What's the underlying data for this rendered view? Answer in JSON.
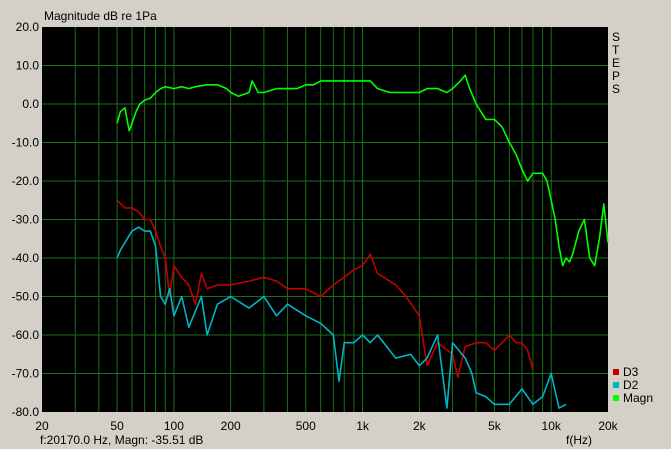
{
  "chart_data": {
    "type": "line",
    "title": "Magnitude dB re 1Pa",
    "xlabel": "f(Hz)",
    "ylabel": "",
    "xscale": "log",
    "xlim": [
      20,
      20000
    ],
    "ylim": [
      -80,
      20
    ],
    "grid": true,
    "legend_placement": "bottom-right",
    "background": "#000000",
    "grid_color": "#1a6e1a",
    "side_label": [
      "S",
      "T",
      "E",
      "P",
      "S"
    ],
    "x_ticks": [
      20,
      50,
      100,
      200,
      500,
      1000,
      2000,
      5000,
      10000,
      20000
    ],
    "x_tick_labels": [
      "20",
      "50",
      "100",
      "200",
      "500",
      "1k",
      "2k",
      "5k",
      "10k",
      "20k"
    ],
    "x_minor_grid": [
      30,
      40,
      60,
      70,
      80,
      90,
      300,
      400,
      600,
      700,
      800,
      900,
      3000,
      4000,
      6000,
      7000,
      8000,
      9000
    ],
    "y_ticks": [
      20,
      10,
      0,
      -10,
      -20,
      -30,
      -40,
      -50,
      -60,
      -70,
      -80
    ],
    "y_tick_labels": [
      "20.0",
      "10.0",
      "0.0",
      "-10.0",
      "-20.0",
      "-30.0",
      "-40.0",
      "-50.0",
      "-60.0",
      "-70.0",
      "-80.0"
    ],
    "status": "f:20170.0 Hz, Magn: -35.51 dB",
    "series": [
      {
        "name": "D3",
        "color": "#c00000",
        "points": [
          [
            50,
            -25
          ],
          [
            55,
            -27
          ],
          [
            60,
            -27
          ],
          [
            65,
            -28
          ],
          [
            70,
            -30
          ],
          [
            75,
            -30
          ],
          [
            80,
            -33
          ],
          [
            85,
            -37
          ],
          [
            90,
            -40
          ],
          [
            95,
            -50
          ],
          [
            100,
            -42
          ],
          [
            110,
            -45
          ],
          [
            120,
            -47
          ],
          [
            130,
            -52
          ],
          [
            140,
            -44
          ],
          [
            150,
            -48
          ],
          [
            170,
            -47
          ],
          [
            200,
            -47
          ],
          [
            250,
            -46
          ],
          [
            300,
            -45
          ],
          [
            350,
            -46
          ],
          [
            400,
            -48
          ],
          [
            500,
            -48
          ],
          [
            600,
            -50
          ],
          [
            700,
            -47
          ],
          [
            800,
            -45
          ],
          [
            900,
            -43
          ],
          [
            1000,
            -42
          ],
          [
            1100,
            -39
          ],
          [
            1200,
            -44
          ],
          [
            1500,
            -47
          ],
          [
            1700,
            -50
          ],
          [
            2000,
            -55
          ],
          [
            2200,
            -68
          ],
          [
            2500,
            -62
          ],
          [
            3000,
            -65
          ],
          [
            3200,
            -71
          ],
          [
            3500,
            -63
          ],
          [
            4000,
            -62
          ],
          [
            4500,
            -62
          ],
          [
            5000,
            -64
          ],
          [
            5500,
            -62
          ],
          [
            6000,
            -60
          ],
          [
            6500,
            -62
          ],
          [
            7000,
            -62
          ],
          [
            7500,
            -64
          ],
          [
            8000,
            -69
          ]
        ]
      },
      {
        "name": "D2",
        "color": "#00b4c8",
        "points": [
          [
            50,
            -40
          ],
          [
            52,
            -38
          ],
          [
            55,
            -36
          ],
          [
            60,
            -33
          ],
          [
            65,
            -32
          ],
          [
            70,
            -33
          ],
          [
            75,
            -33
          ],
          [
            80,
            -37
          ],
          [
            85,
            -50
          ],
          [
            90,
            -52
          ],
          [
            95,
            -48
          ],
          [
            100,
            -55
          ],
          [
            110,
            -50
          ],
          [
            120,
            -58
          ],
          [
            140,
            -50
          ],
          [
            150,
            -60
          ],
          [
            170,
            -52
          ],
          [
            200,
            -50
          ],
          [
            250,
            -53
          ],
          [
            300,
            -50
          ],
          [
            350,
            -55
          ],
          [
            400,
            -52
          ],
          [
            500,
            -55
          ],
          [
            600,
            -57
          ],
          [
            700,
            -60
          ],
          [
            750,
            -72
          ],
          [
            800,
            -62
          ],
          [
            900,
            -62
          ],
          [
            1000,
            -60
          ],
          [
            1100,
            -62
          ],
          [
            1200,
            -60
          ],
          [
            1500,
            -66
          ],
          [
            1800,
            -65
          ],
          [
            2000,
            -68
          ],
          [
            2200,
            -66
          ],
          [
            2500,
            -60
          ],
          [
            2800,
            -79
          ],
          [
            3000,
            -62
          ],
          [
            3500,
            -66
          ],
          [
            3800,
            -70
          ],
          [
            4000,
            -75
          ],
          [
            4500,
            -76
          ],
          [
            5000,
            -78
          ],
          [
            6000,
            -78
          ],
          [
            7000,
            -74
          ],
          [
            8000,
            -78
          ],
          [
            9000,
            -76
          ],
          [
            10000,
            -70
          ],
          [
            11000,
            -79
          ],
          [
            12000,
            -78
          ]
        ]
      },
      {
        "name": "Magn",
        "color": "#00ff00",
        "points": [
          [
            50,
            -5
          ],
          [
            52,
            -2
          ],
          [
            55,
            -1
          ],
          [
            58,
            -7
          ],
          [
            60,
            -5
          ],
          [
            63,
            -2
          ],
          [
            66,
            0
          ],
          [
            70,
            1
          ],
          [
            75,
            1.5
          ],
          [
            80,
            3
          ],
          [
            85,
            4
          ],
          [
            90,
            4.5
          ],
          [
            100,
            4
          ],
          [
            110,
            4.5
          ],
          [
            120,
            4
          ],
          [
            130,
            4.5
          ],
          [
            150,
            5
          ],
          [
            170,
            5
          ],
          [
            190,
            4
          ],
          [
            200,
            3
          ],
          [
            220,
            2
          ],
          [
            250,
            3
          ],
          [
            260,
            6
          ],
          [
            280,
            3
          ],
          [
            300,
            3
          ],
          [
            350,
            4
          ],
          [
            400,
            4
          ],
          [
            450,
            4
          ],
          [
            500,
            5
          ],
          [
            550,
            5
          ],
          [
            600,
            6
          ],
          [
            700,
            6
          ],
          [
            800,
            6
          ],
          [
            900,
            6
          ],
          [
            1000,
            6
          ],
          [
            1100,
            6
          ],
          [
            1200,
            4
          ],
          [
            1400,
            3
          ],
          [
            1600,
            3
          ],
          [
            2000,
            3
          ],
          [
            2200,
            4
          ],
          [
            2500,
            4
          ],
          [
            2800,
            3
          ],
          [
            3000,
            4
          ],
          [
            3300,
            6
          ],
          [
            3500,
            7.5
          ],
          [
            3700,
            4
          ],
          [
            4000,
            0
          ],
          [
            4500,
            -4
          ],
          [
            5000,
            -4
          ],
          [
            5500,
            -6
          ],
          [
            6000,
            -10
          ],
          [
            6500,
            -13
          ],
          [
            7000,
            -17
          ],
          [
            7500,
            -20
          ],
          [
            8000,
            -18
          ],
          [
            8500,
            -18
          ],
          [
            9000,
            -18
          ],
          [
            9500,
            -20
          ],
          [
            10000,
            -25
          ],
          [
            10500,
            -30
          ],
          [
            11000,
            -37
          ],
          [
            11500,
            -42
          ],
          [
            12000,
            -40
          ],
          [
            12500,
            -41
          ],
          [
            13000,
            -39
          ],
          [
            14000,
            -33
          ],
          [
            15000,
            -30
          ],
          [
            16000,
            -40
          ],
          [
            17000,
            -42
          ],
          [
            18000,
            -35
          ],
          [
            19000,
            -26
          ],
          [
            20000,
            -36
          ]
        ]
      }
    ]
  }
}
